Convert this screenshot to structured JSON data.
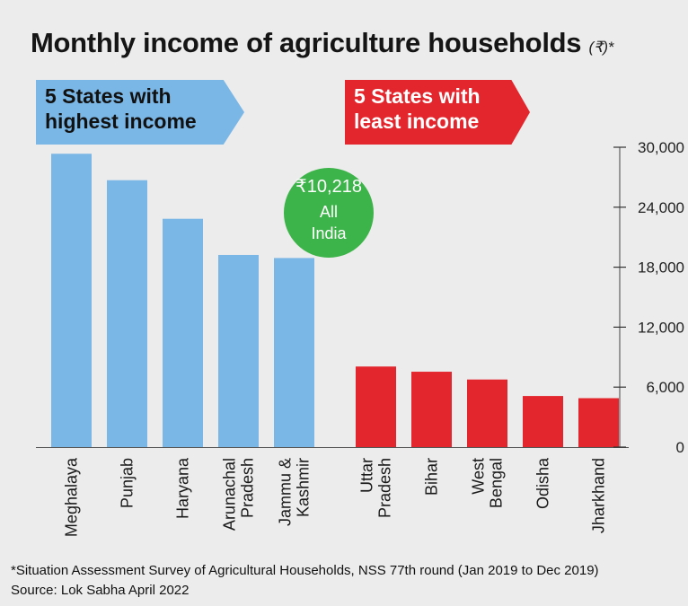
{
  "title": "Monthly income of agriculture households",
  "title_suffix": "(₹)*",
  "banners": {
    "high": "5 States with highest income",
    "low": "5 States with least income"
  },
  "badge": {
    "value": "₹10,218",
    "label_line1": "All",
    "label_line2": "India",
    "color": "#3db449"
  },
  "colors": {
    "high": "#7bb7e6",
    "low": "#e3262d",
    "background": "#ececec"
  },
  "chart_data": {
    "type": "bar",
    "categories": [
      "Meghalaya",
      "Punjab",
      "Haryana",
      "Arunachal Pradesh",
      "Jammu & Kashmir",
      "Uttar Pradesh",
      "Bihar",
      "West Bengal",
      "Odisha",
      "Jharkhand"
    ],
    "category_lines": [
      [
        "Meghalaya"
      ],
      [
        "Punjab"
      ],
      [
        "Haryana"
      ],
      [
        "Arunachal",
        "Pradesh"
      ],
      [
        "Jammu &",
        "Kashmir"
      ],
      [
        "Uttar",
        "Pradesh"
      ],
      [
        "Bihar"
      ],
      [
        "West",
        "Bengal"
      ],
      [
        "Odisha"
      ],
      [
        "Jharkhand"
      ]
    ],
    "values": [
      29348,
      26701,
      22841,
      19225,
      18918,
      8061,
      7542,
      6762,
      5112,
      4895
    ],
    "groups": [
      "high",
      "high",
      "high",
      "high",
      "high",
      "low",
      "low",
      "low",
      "low",
      "low"
    ],
    "yticks": [
      "30,000",
      "24,000",
      "18,000",
      "12,000",
      "6,000",
      "0"
    ],
    "ytick_values": [
      30000,
      24000,
      18000,
      12000,
      6000,
      0
    ],
    "ylim": [
      0,
      30000
    ],
    "y_axis_side": "right",
    "grid": false
  },
  "footer": {
    "line1": "*Situation Assessment Survey of Agricultural Households, NSS 77th round (Jan 2019 to Dec 2019)",
    "line2": "Source: Lok Sabha April 2022"
  }
}
